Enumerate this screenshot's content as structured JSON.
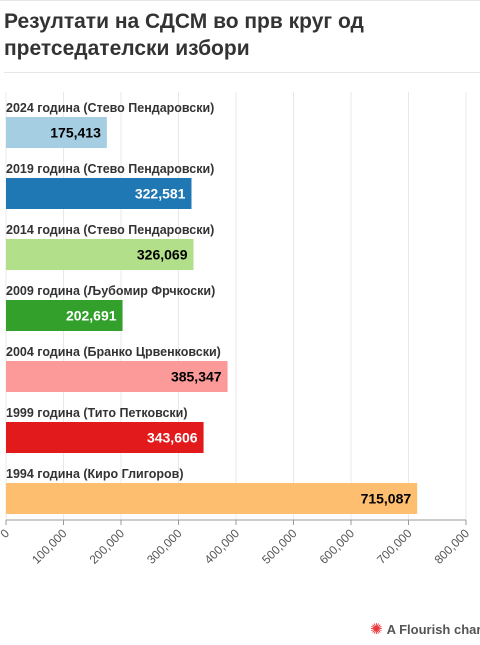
{
  "title": "Резултати на СДСМ во прв круг од претседателски избори",
  "footer": {
    "credit": "A Flourish char"
  },
  "chart_data": {
    "type": "bar",
    "orientation": "horizontal",
    "title": "Резултати на СДСМ во прв круг од претседателски избори",
    "categories": [
      "2024 година (Стево Пендаровски)",
      "2019 година (Стево Пендаровски)",
      "2014 година (Стево Пендаровски)",
      "2009 година (Љубомир Фрчкоски)",
      "2004 година (Бранко Црвенковски)",
      "1999 година (Тито Петковски)",
      "1994 година (Киро Глигоров)"
    ],
    "values": [
      175413,
      322581,
      326069,
      202691,
      385347,
      343606,
      715087
    ],
    "value_labels": [
      "175,413",
      "322,581",
      "326,069",
      "202,691",
      "385,347",
      "343,606",
      "715,087"
    ],
    "bar_colors": [
      "#a6cee3",
      "#1f78b4",
      "#b2df8a",
      "#33a02c",
      "#fb9a99",
      "#e31a1c",
      "#fdbf6f"
    ],
    "label_colors": [
      "#000000",
      "#ffffff",
      "#000000",
      "#ffffff",
      "#000000",
      "#ffffff",
      "#000000"
    ],
    "xlim": [
      0,
      800000
    ],
    "x_ticks": [
      0,
      100000,
      200000,
      300000,
      400000,
      500000,
      600000,
      700000,
      800000
    ],
    "x_tick_labels": [
      "0",
      "100,000",
      "200,000",
      "300,000",
      "400,000",
      "500,000",
      "600,000",
      "700,000",
      "800,000"
    ],
    "grid": true,
    "legend": "none"
  }
}
